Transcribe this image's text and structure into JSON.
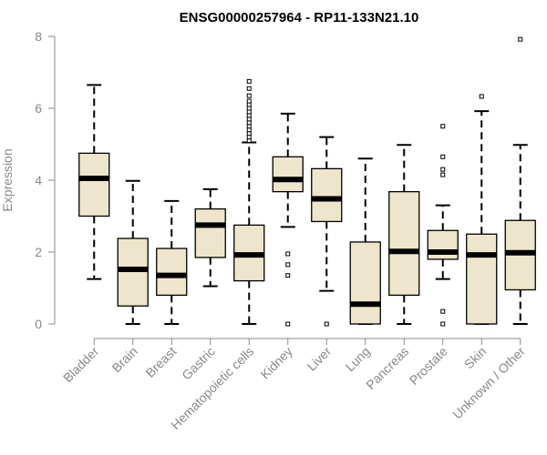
{
  "chart_data": {
    "type": "box",
    "title": "ENSG00000257964 - RP11-133N21.10",
    "xlabel": "",
    "ylabel": "Expression",
    "ylim": [
      0,
      8
    ],
    "yticks": [
      0,
      2,
      4,
      6,
      8
    ],
    "box_fill": "#EDE6CC",
    "categories": [
      "Bladder",
      "Brain",
      "Breast",
      "Gastric",
      "Hematopoietic cells",
      "Kidney",
      "Liver",
      "Lung",
      "Pancreas",
      "Prostate",
      "Skin",
      "Unknown / Other"
    ],
    "boxes": [
      {
        "name": "Bladder",
        "whisker_low": 1.25,
        "q1": 3.0,
        "median": 4.05,
        "q3": 4.75,
        "whisker_high": 6.65,
        "outliers": []
      },
      {
        "name": "Brain",
        "whisker_low": 0.0,
        "q1": 0.5,
        "median": 1.52,
        "q3": 2.38,
        "whisker_high": 3.98,
        "outliers": []
      },
      {
        "name": "Breast",
        "whisker_low": 0.0,
        "q1": 0.8,
        "median": 1.35,
        "q3": 2.1,
        "whisker_high": 3.42,
        "outliers": []
      },
      {
        "name": "Gastric",
        "whisker_low": 1.05,
        "q1": 1.85,
        "median": 2.75,
        "q3": 3.2,
        "whisker_high": 3.75,
        "outliers": []
      },
      {
        "name": "Hematopoietic cells",
        "whisker_low": 0.0,
        "q1": 1.2,
        "median": 1.92,
        "q3": 2.75,
        "whisker_high": 5.05,
        "outliers": [
          5.1,
          5.2,
          5.3,
          5.4,
          5.5,
          5.6,
          5.7,
          5.8,
          5.9,
          6.0,
          6.1,
          6.2,
          6.35,
          6.55,
          6.75
        ]
      },
      {
        "name": "Kidney",
        "whisker_low": 2.7,
        "q1": 3.68,
        "median": 4.02,
        "q3": 4.65,
        "whisker_high": 5.85,
        "outliers": [
          0.0,
          1.35,
          1.65,
          1.95
        ]
      },
      {
        "name": "Liver",
        "whisker_low": 0.92,
        "q1": 2.85,
        "median": 3.48,
        "q3": 4.32,
        "whisker_high": 5.2,
        "outliers": [
          0.0
        ]
      },
      {
        "name": "Lung",
        "whisker_low": 0.0,
        "q1": 0.0,
        "median": 0.55,
        "q3": 2.28,
        "whisker_high": 4.6,
        "outliers": []
      },
      {
        "name": "Pancreas",
        "whisker_low": 0.0,
        "q1": 0.8,
        "median": 2.02,
        "q3": 3.68,
        "whisker_high": 4.98,
        "outliers": []
      },
      {
        "name": "Prostate",
        "whisker_low": 1.25,
        "q1": 1.8,
        "median": 2.0,
        "q3": 2.6,
        "whisker_high": 3.3,
        "outliers": [
          0.0,
          0.35,
          4.15,
          4.3,
          4.65,
          5.5
        ]
      },
      {
        "name": "Skin",
        "whisker_low": 0.0,
        "q1": 0.0,
        "median": 1.92,
        "q3": 2.5,
        "whisker_high": 5.92,
        "outliers": [
          6.33
        ]
      },
      {
        "name": "Unknown / Other",
        "whisker_low": 0.0,
        "q1": 0.95,
        "median": 1.98,
        "q3": 2.88,
        "whisker_high": 4.98,
        "outliers": [
          7.92
        ]
      }
    ]
  }
}
